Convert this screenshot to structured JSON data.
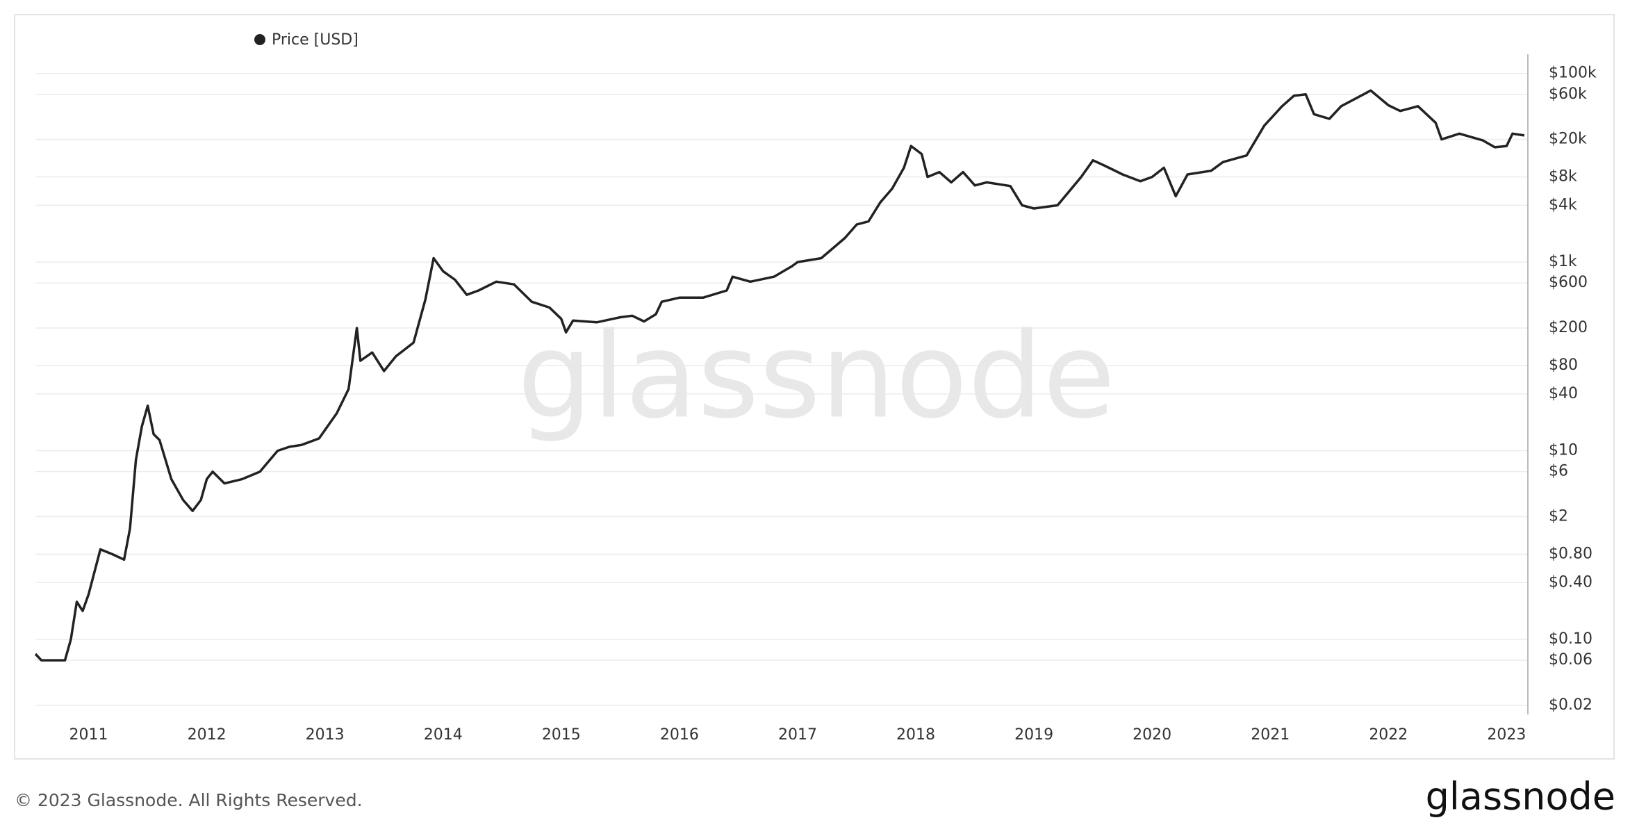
{
  "chart_data": {
    "type": "line",
    "legend_label_series": 0,
    "x": [
      2010.55,
      2010.6,
      2010.8,
      2010.85,
      2010.9,
      2010.95,
      2011.0,
      2011.1,
      2011.2,
      2011.3,
      2011.35,
      2011.4,
      2011.45,
      2011.5,
      2011.55,
      2011.6,
      2011.7,
      2011.8,
      2011.88,
      2011.95,
      2012.0,
      2012.05,
      2012.15,
      2012.3,
      2012.45,
      2012.6,
      2012.7,
      2012.8,
      2012.95,
      2013.1,
      2013.2,
      2013.27,
      2013.3,
      2013.4,
      2013.5,
      2013.6,
      2013.75,
      2013.85,
      2013.92,
      2014.0,
      2014.1,
      2014.2,
      2014.3,
      2014.45,
      2014.6,
      2014.75,
      2014.9,
      2015.0,
      2015.04,
      2015.1,
      2015.3,
      2015.5,
      2015.6,
      2015.7,
      2015.8,
      2015.85,
      2016.0,
      2016.2,
      2016.4,
      2016.45,
      2016.6,
      2016.8,
      2016.95,
      2017.0,
      2017.2,
      2017.4,
      2017.5,
      2017.6,
      2017.7,
      2017.8,
      2017.9,
      2017.96,
      2018.05,
      2018.1,
      2018.2,
      2018.3,
      2018.4,
      2018.5,
      2018.6,
      2018.8,
      2018.9,
      2019.0,
      2019.2,
      2019.4,
      2019.5,
      2019.6,
      2019.75,
      2019.9,
      2020.0,
      2020.1,
      2020.2,
      2020.3,
      2020.5,
      2020.6,
      2020.8,
      2020.95,
      2021.1,
      2021.2,
      2021.3,
      2021.37,
      2021.5,
      2021.6,
      2021.8,
      2021.85,
      2022.0,
      2022.1,
      2022.25,
      2022.4,
      2022.45,
      2022.6,
      2022.8,
      2022.9,
      2023.0,
      2023.05,
      2023.15
    ],
    "series": [
      {
        "name": "Price [USD]",
        "color": "#222222",
        "values": [
          0.07,
          0.06,
          0.06,
          0.1,
          0.25,
          0.2,
          0.3,
          0.9,
          0.8,
          0.7,
          1.5,
          8,
          18,
          30,
          15,
          13,
          5,
          3,
          2.3,
          3,
          5,
          6,
          4.5,
          5,
          6,
          10,
          11,
          11.5,
          13.5,
          25,
          45,
          200,
          90,
          110,
          70,
          100,
          140,
          400,
          1100,
          800,
          650,
          450,
          500,
          620,
          580,
          380,
          330,
          250,
          180,
          240,
          230,
          260,
          270,
          235,
          280,
          380,
          420,
          420,
          500,
          700,
          620,
          700,
          900,
          1000,
          1100,
          1800,
          2500,
          2700,
          4300,
          6000,
          10000,
          17000,
          14000,
          8000,
          9000,
          7000,
          9000,
          6500,
          7000,
          6400,
          4000,
          3700,
          4000,
          8000,
          12000,
          10500,
          8500,
          7200,
          8000,
          10000,
          5000,
          8500,
          9300,
          11500,
          13500,
          28000,
          45000,
          58000,
          60000,
          37000,
          33000,
          45000,
          61000,
          66000,
          46000,
          40000,
          45000,
          30000,
          20000,
          23000,
          19500,
          16500,
          17000,
          23000,
          22000
        ]
      }
    ],
    "xlim": [
      2010.55,
      2023.18
    ],
    "xticks": [
      2011,
      2012,
      2013,
      2014,
      2015,
      2016,
      2017,
      2018,
      2019,
      2020,
      2021,
      2022,
      2023
    ],
    "ylim": [
      0.016,
      160000
    ],
    "log_scale": true,
    "grid": true,
    "yticks": [
      {
        "value": 100000,
        "label": "$100k"
      },
      {
        "value": 60000,
        "label": "$60k"
      },
      {
        "value": 20000,
        "label": "$20k"
      },
      {
        "value": 8000,
        "label": "$8k"
      },
      {
        "value": 4000,
        "label": "$4k"
      },
      {
        "value": 1000,
        "label": "$1k"
      },
      {
        "value": 600,
        "label": "$600"
      },
      {
        "value": 200,
        "label": "$200"
      },
      {
        "value": 80,
        "label": "$80"
      },
      {
        "value": 40,
        "label": "$40"
      },
      {
        "value": 10,
        "label": "$10"
      },
      {
        "value": 6,
        "label": "$6"
      },
      {
        "value": 2,
        "label": "$2"
      },
      {
        "value": 0.8,
        "label": "$0.80"
      },
      {
        "value": 0.4,
        "label": "$0.40"
      },
      {
        "value": 0.1,
        "label": "$0.10"
      },
      {
        "value": 0.06,
        "label": "$0.06"
      },
      {
        "value": 0.02,
        "label": "$0.02"
      }
    ]
  },
  "watermark": "glassnode",
  "footer": "© 2023 Glassnode. All Rights Reserved.",
  "logo": "glassnode"
}
